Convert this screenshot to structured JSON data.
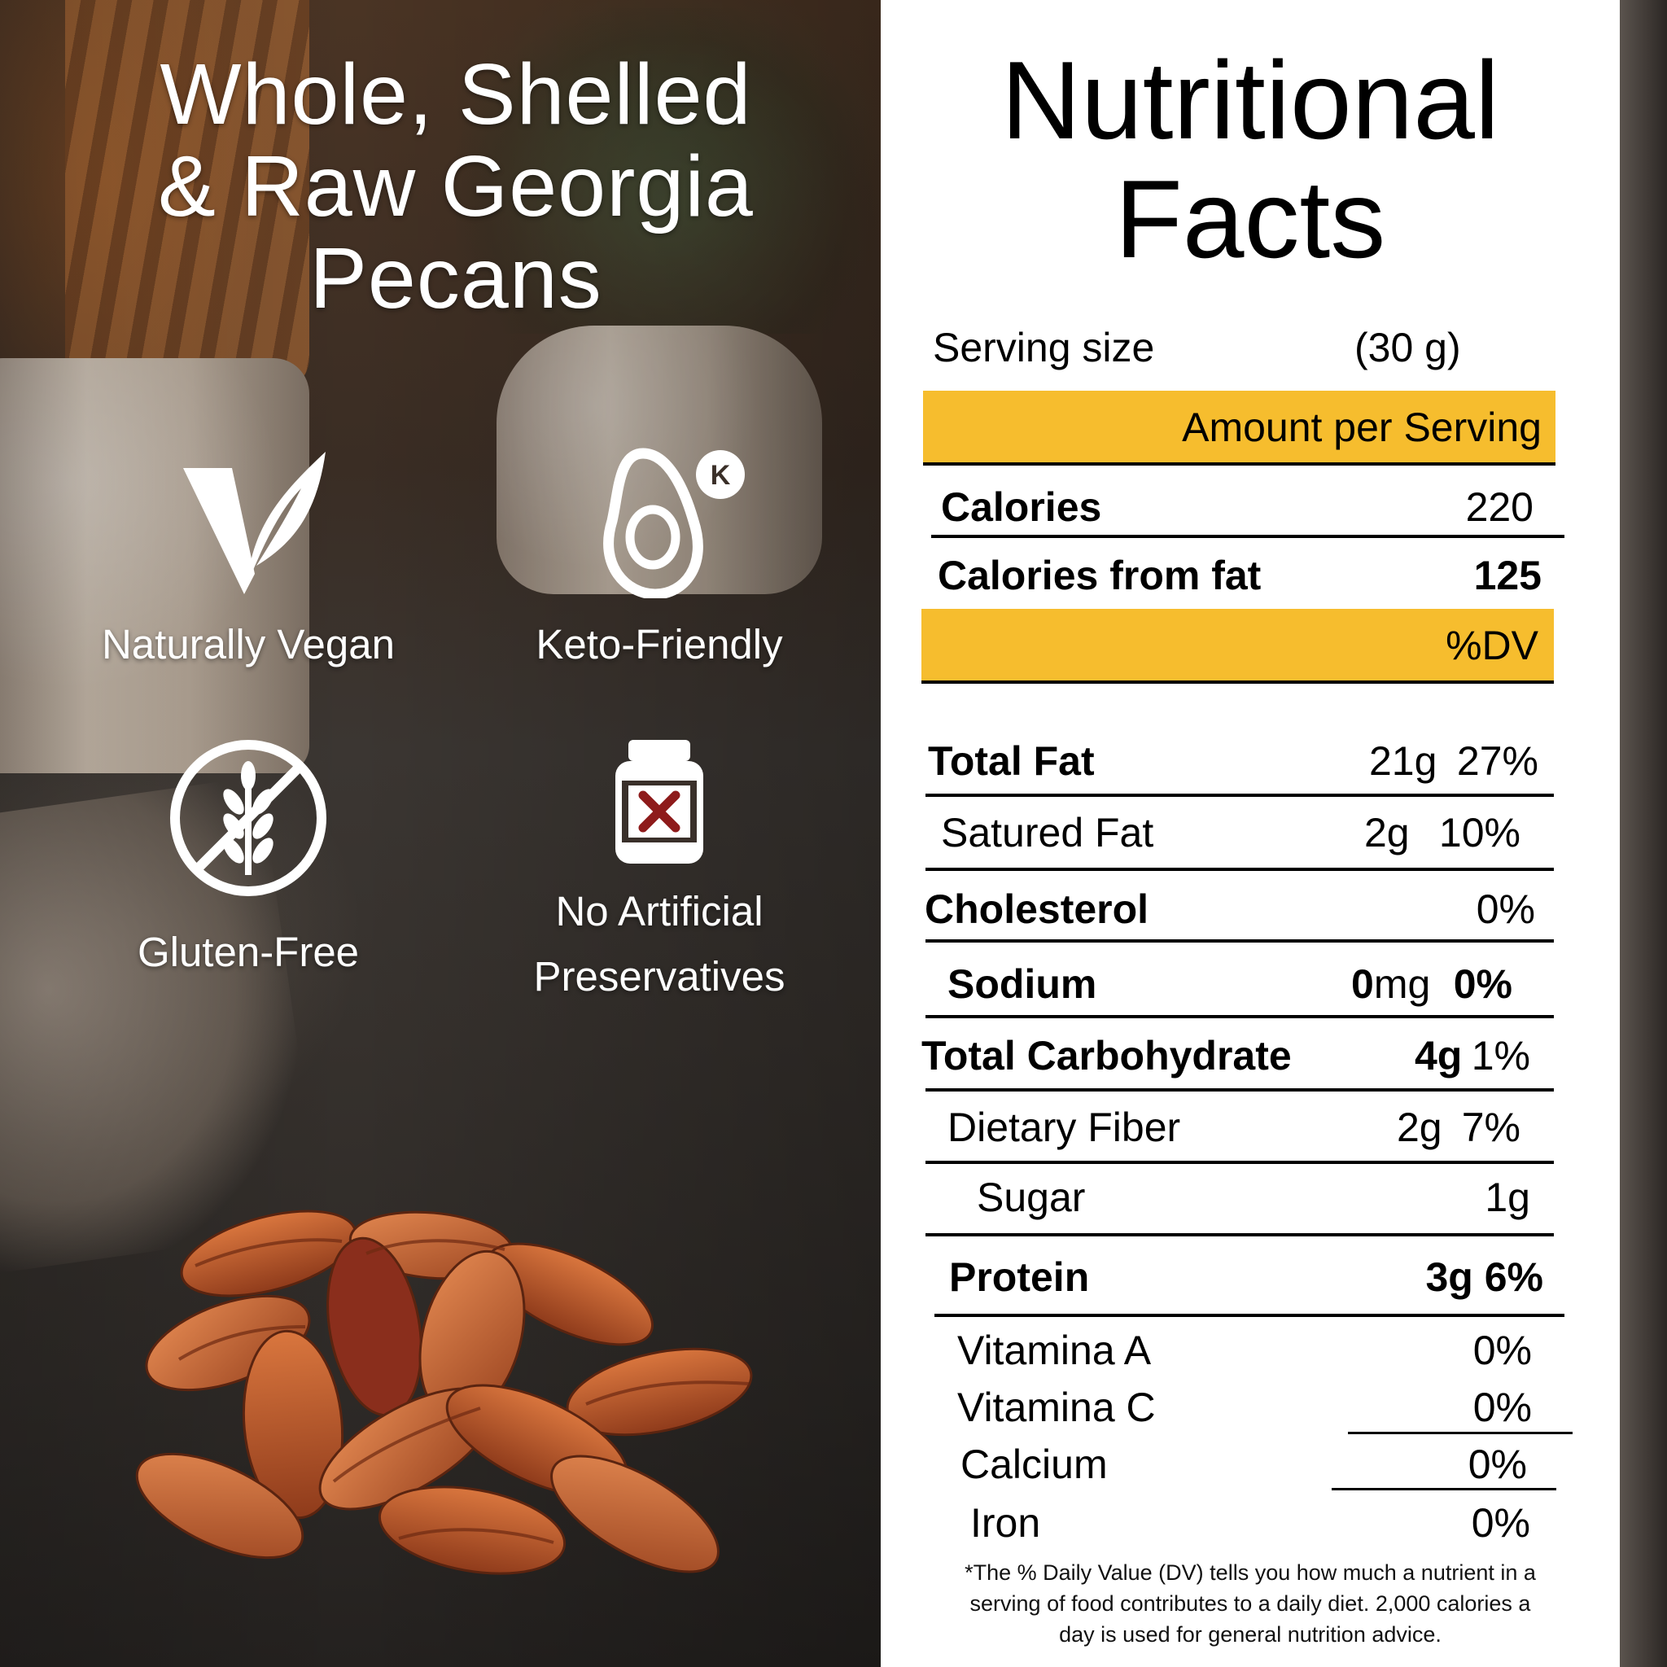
{
  "left": {
    "headline": [
      "Whole, Shelled",
      "& Raw Georgia",
      "Pecans"
    ],
    "features": {
      "vegan": "Naturally Vegan",
      "keto": "Keto-Friendly",
      "gluten": "Gluten-Free",
      "preservatives": [
        "No Artificial",
        "Preservatives"
      ]
    },
    "keto_badge": "K"
  },
  "nutrition": {
    "title": [
      "Nutritional",
      "Facts"
    ],
    "serving_size_label": "Serving size",
    "serving_size_value": "(30 g)",
    "amount_per_serving": "Amount per Serving",
    "calories_label": "Calories",
    "calories_value": "220",
    "calories_fat_label": "Calories from fat",
    "calories_fat_value": "125",
    "dv_header": "%DV",
    "total_fat": {
      "label": "Total Fat",
      "amount": "21g",
      "dv": "27%"
    },
    "saturated_fat": {
      "label": "Satured Fat",
      "amount": "2g",
      "dv": "10%"
    },
    "cholesterol": {
      "label": "Cholesterol",
      "dv": "0%"
    },
    "sodium": {
      "label": "Sodium",
      "amount_num": "0",
      "amount_unit": "mg",
      "dv": "0%"
    },
    "total_carb": {
      "label": "Total Carbohydrate",
      "amount": "4g",
      "dv": "1%"
    },
    "fiber": {
      "label": "Dietary Fiber",
      "amount": "2g",
      "dv": "7%"
    },
    "sugar": {
      "label": "Sugar",
      "amount": "1g"
    },
    "protein": {
      "label": "Protein",
      "amount": "3g",
      "dv": "6%"
    },
    "vitamin_a": {
      "label": "Vitamina A",
      "dv": "0%"
    },
    "vitamin_c": {
      "label": "Vitamina C",
      "dv": "0%"
    },
    "calcium": {
      "label": "Calcium",
      "dv": "0%"
    },
    "iron": {
      "label": "Iron",
      "dv": "0%"
    },
    "footnote": [
      "*The % Daily Value (DV) tells you how much a nutrient in a",
      "serving of food contributes to a daily diet. 2,000 calories a",
      "day is used for general nutrition advice."
    ]
  },
  "colors": {
    "accent_band": "#f6bd2e",
    "panel_bg": "#ffffff",
    "text": "#000000"
  }
}
